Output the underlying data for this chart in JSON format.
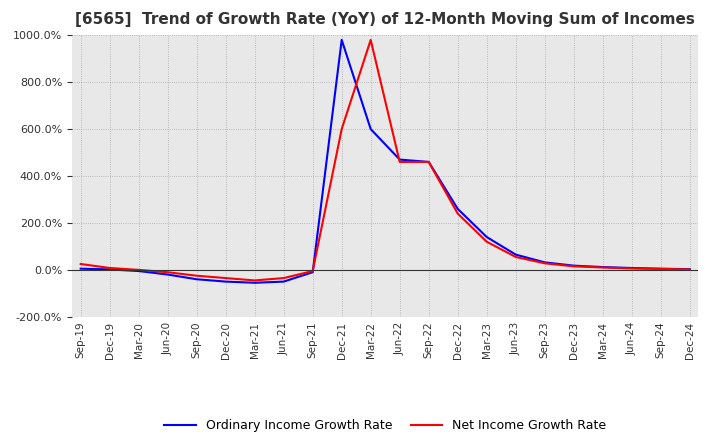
{
  "title": "[6565]  Trend of Growth Rate (YoY) of 12-Month Moving Sum of Incomes",
  "title_fontsize": 11,
  "ylim": [
    -200,
    1000
  ],
  "yticks": [
    -200,
    0,
    200,
    400,
    600,
    800,
    1000
  ],
  "legend_labels": [
    "Ordinary Income Growth Rate",
    "Net Income Growth Rate"
  ],
  "line_colors": [
    "#0000ff",
    "#ff0000"
  ],
  "background_color": "#ffffff",
  "plot_bg_color": "#e8e8e8",
  "grid_color": "#aaaaaa",
  "dates": [
    "Sep-19",
    "Dec-19",
    "Mar-20",
    "Jun-20",
    "Sep-20",
    "Dec-20",
    "Mar-21",
    "Jun-21",
    "Sep-21",
    "Dec-21",
    "Mar-22",
    "Jun-22",
    "Sep-22",
    "Dec-22",
    "Mar-23",
    "Jun-23",
    "Sep-23",
    "Dec-23",
    "Mar-24",
    "Jun-24",
    "Sep-24",
    "Dec-24"
  ],
  "ordinary_income_growth": [
    5.0,
    2.0,
    -5.0,
    -20.0,
    -40.0,
    -50.0,
    -55.0,
    -50.0,
    -10.0,
    980.0,
    600.0,
    470.0,
    460.0,
    260.0,
    140.0,
    65.0,
    32.0,
    18.0,
    12.0,
    8.0,
    5.0,
    3.0
  ],
  "net_income_growth": [
    25.0,
    8.0,
    0.0,
    -10.0,
    -25.0,
    -35.0,
    -45.0,
    -35.0,
    -5.0,
    600.0,
    980.0,
    460.0,
    460.0,
    240.0,
    120.0,
    55.0,
    28.0,
    15.0,
    10.0,
    6.0,
    4.0,
    2.0
  ]
}
